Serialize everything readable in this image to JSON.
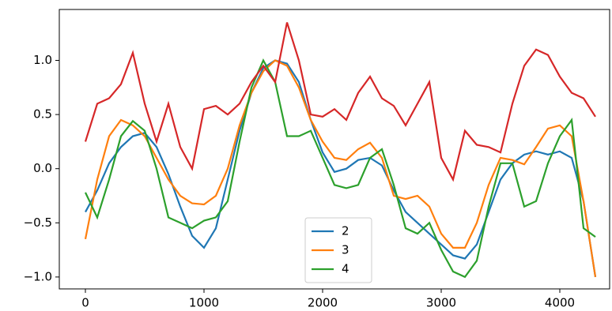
{
  "chart_data": {
    "type": "line",
    "x": [
      0,
      100,
      200,
      300,
      400,
      500,
      600,
      700,
      800,
      900,
      1000,
      1100,
      1200,
      1300,
      1400,
      1500,
      1600,
      1700,
      1800,
      1900,
      2000,
      2100,
      2200,
      2300,
      2400,
      2500,
      2600,
      2700,
      2800,
      2900,
      3000,
      3100,
      3200,
      3300,
      3400,
      3500,
      3600,
      3700,
      3800,
      3900,
      4000,
      4100,
      4200,
      4300
    ],
    "series": [
      {
        "color": "#d62728",
        "values": [
          0.25,
          0.6,
          0.65,
          0.78,
          1.07,
          0.6,
          0.25,
          0.6,
          0.2,
          0.0,
          0.55,
          0.58,
          0.5,
          0.6,
          0.8,
          0.95,
          0.8,
          1.35,
          1.0,
          0.5,
          0.48,
          0.55,
          0.45,
          0.7,
          0.85,
          0.65,
          0.58,
          0.4,
          0.6,
          0.8,
          0.1,
          -0.1,
          0.35,
          0.22,
          0.2,
          0.15,
          0.6,
          0.95,
          1.1,
          1.05,
          0.85,
          0.7,
          0.65,
          0.48
        ]
      },
      {
        "name": "2",
        "color": "#1f77b4",
        "values": [
          -0.4,
          -0.2,
          0.05,
          0.2,
          0.3,
          0.33,
          0.2,
          -0.05,
          -0.35,
          -0.62,
          -0.73,
          -0.55,
          -0.1,
          0.35,
          0.7,
          0.93,
          1.0,
          0.97,
          0.8,
          0.45,
          0.15,
          -0.03,
          0.0,
          0.08,
          0.1,
          0.03,
          -0.2,
          -0.4,
          -0.5,
          -0.6,
          -0.7,
          -0.8,
          -0.83,
          -0.7,
          -0.4,
          -0.1,
          0.05,
          0.13,
          0.16,
          0.13,
          0.16,
          0.1,
          -0.3,
          -1.0
        ]
      },
      {
        "name": "3",
        "color": "#ff7f0e",
        "values": [
          -0.65,
          -0.1,
          0.3,
          0.45,
          0.4,
          0.3,
          0.1,
          -0.1,
          -0.25,
          -0.32,
          -0.33,
          -0.25,
          0.0,
          0.4,
          0.7,
          0.9,
          1.0,
          0.95,
          0.75,
          0.45,
          0.25,
          0.1,
          0.08,
          0.18,
          0.24,
          0.1,
          -0.25,
          -0.28,
          -0.25,
          -0.35,
          -0.6,
          -0.73,
          -0.73,
          -0.5,
          -0.15,
          0.1,
          0.08,
          0.04,
          0.2,
          0.37,
          0.4,
          0.3,
          -0.3,
          -1.0
        ]
      },
      {
        "name": "4",
        "color": "#2ca02c",
        "values": [
          -0.22,
          -0.45,
          -0.1,
          0.3,
          0.44,
          0.35,
          0.0,
          -0.45,
          -0.5,
          -0.55,
          -0.48,
          -0.45,
          -0.3,
          0.25,
          0.75,
          1.0,
          0.8,
          0.3,
          0.3,
          0.35,
          0.1,
          -0.15,
          -0.18,
          -0.15,
          0.1,
          0.18,
          -0.15,
          -0.55,
          -0.6,
          -0.5,
          -0.75,
          -0.95,
          -1.0,
          -0.85,
          -0.35,
          0.05,
          0.05,
          -0.35,
          -0.3,
          0.05,
          0.3,
          0.45,
          -0.55,
          -0.63
        ]
      }
    ],
    "xlim": [
      -220,
      4420
    ],
    "xticks": [
      0,
      1000,
      2000,
      3000,
      4000
    ],
    "ylim": [
      -1.11,
      1.47
    ],
    "yticks": [
      {
        "value": -1,
        "label": "−1.0"
      },
      {
        "value": -0.5,
        "label": "−0.5"
      },
      {
        "value": 0,
        "label": "0.0"
      },
      {
        "value": 0.5,
        "label": "0.5"
      },
      {
        "value": 1,
        "label": "1.0"
      }
    ],
    "legend": "lower center"
  }
}
